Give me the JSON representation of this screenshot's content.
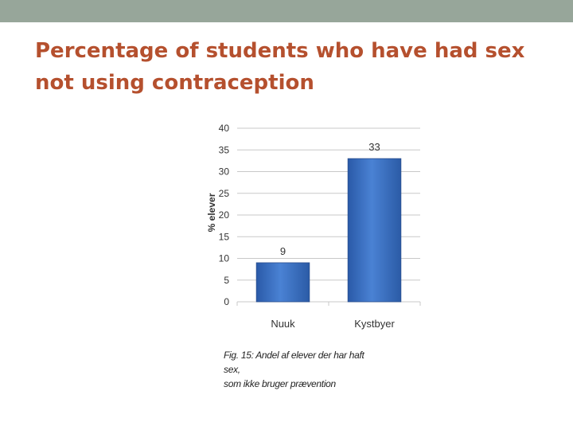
{
  "slide": {
    "title_line1": "Percentage of students who have had sex",
    "title_line2": "not using contraception",
    "top_bar_color": "#97a69a",
    "title_color": "#b5502e"
  },
  "chart_data": {
    "type": "bar",
    "categories": [
      "Nuuk",
      "Kystbyer"
    ],
    "values": [
      9,
      33
    ],
    "data_labels": [
      "9",
      "33"
    ],
    "title": "",
    "xlabel": "",
    "ylabel": "% elever",
    "ylim": [
      0,
      40
    ],
    "yticks": [
      0,
      5,
      10,
      15,
      20,
      25,
      30,
      35,
      40
    ],
    "grid": true,
    "bar_color": "#3a6fc2",
    "caption_line1": "Fig. 15: Andel af elever der har haft sex,",
    "caption_line2": "som ikke bruger prævention"
  }
}
